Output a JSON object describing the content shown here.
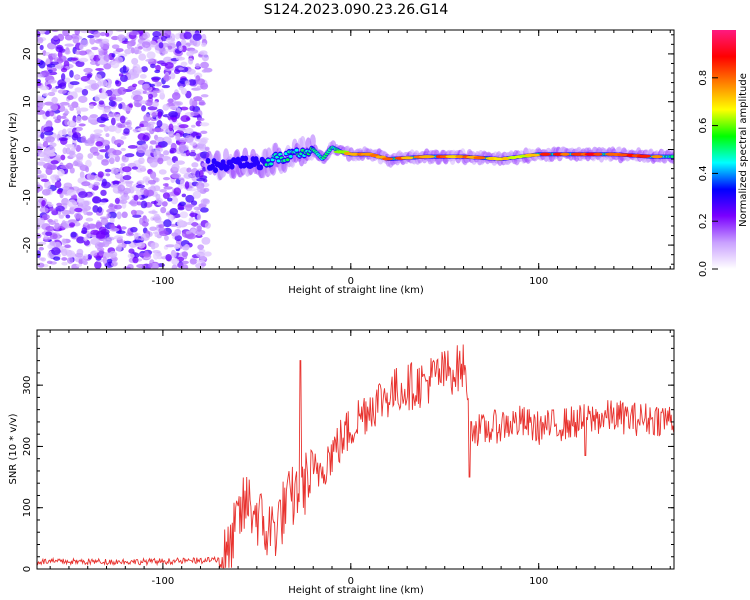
{
  "title": "S124.2023.090.23.26.G14",
  "chart_data": [
    {
      "type": "heatmap",
      "xlabel": "Height of straight line (km)",
      "ylabel": "Frequency (Hz)",
      "xlim": [
        -167,
        172
      ],
      "ylim": [
        -25,
        25
      ],
      "xticks": [
        -100,
        0,
        100
      ],
      "yticks": [
        -20,
        -10,
        0,
        10,
        20
      ],
      "xtick_labels": [
        "-100",
        "0",
        "100"
      ],
      "ytick_labels": [
        "-20",
        "-10",
        "0",
        "10",
        "20"
      ],
      "noise_region_x": [
        -167,
        -76
      ],
      "ridge": {
        "x": [
          -76,
          -70,
          -60,
          -50,
          -40,
          -30,
          -20,
          -15,
          -10,
          -5,
          0,
          10,
          20,
          40,
          60,
          80,
          90,
          100,
          120,
          140,
          160,
          172
        ],
        "freq": [
          -3,
          -3.5,
          -2.5,
          -3,
          -2,
          -1,
          0,
          -2,
          0.5,
          -0.5,
          -1,
          -1,
          -2,
          -1.5,
          -1.5,
          -2,
          -1.5,
          -1,
          -1,
          -1,
          -1.5,
          -1.5
        ],
        "amplitude": [
          0.3,
          0.4,
          0.4,
          0.35,
          0.45,
          0.5,
          0.55,
          0.5,
          0.6,
          0.7,
          0.85,
          0.9,
          0.9,
          0.85,
          0.85,
          0.8,
          0.75,
          0.85,
          0.95,
          0.95,
          0.9,
          0.9
        ]
      },
      "colorbar": {
        "label": "Normalized spectral amplitude",
        "range": [
          0,
          1
        ],
        "ticks": [
          "0.0",
          "0.2",
          "0.4",
          "0.6",
          "0.8"
        ],
        "tick_values": [
          0,
          0.2,
          0.4,
          0.6,
          0.8
        ],
        "colors": [
          "#ffffff",
          "#c9a0ff",
          "#7a00ff",
          "#0000ff",
          "#00ffff",
          "#00ff00",
          "#ffff00",
          "#ff8000",
          "#ff0000",
          "#ff1a80"
        ]
      }
    },
    {
      "type": "line",
      "xlabel": "Height of straight line (km)",
      "ylabel": "SNR (10 * v/v)",
      "xlim": [
        -167,
        172
      ],
      "ylim": [
        0,
        390
      ],
      "xticks": [
        -100,
        0,
        100
      ],
      "yticks": [
        0,
        100,
        200,
        300
      ],
      "xtick_labels": [
        "-100",
        "0",
        "100"
      ],
      "ytick_labels": [
        "0",
        "100",
        "200",
        "300"
      ],
      "color": "#e8322e",
      "grid": false,
      "series": [
        {
          "x": [
            -167,
            -150,
            -130,
            -110,
            -90,
            -75,
            -65,
            -60,
            -55,
            -50,
            -45,
            -40,
            -35,
            -30,
            -25,
            -20,
            -15,
            -10,
            -5,
            0,
            5,
            10,
            15,
            20,
            25,
            30,
            35,
            40,
            45,
            50,
            55,
            60,
            62,
            65,
            70,
            80,
            90,
            100,
            110,
            120,
            130,
            140,
            150,
            160,
            172
          ],
          "values": [
            12,
            12,
            12,
            12,
            13,
            14,
            20,
            80,
            110,
            90,
            60,
            70,
            100,
            120,
            140,
            150,
            170,
            190,
            210,
            230,
            250,
            265,
            275,
            285,
            292,
            298,
            300,
            305,
            315,
            320,
            325,
            330,
            300,
            230,
            225,
            235,
            240,
            230,
            235,
            240,
            245,
            250,
            245,
            245,
            245
          ]
        }
      ]
    }
  ]
}
